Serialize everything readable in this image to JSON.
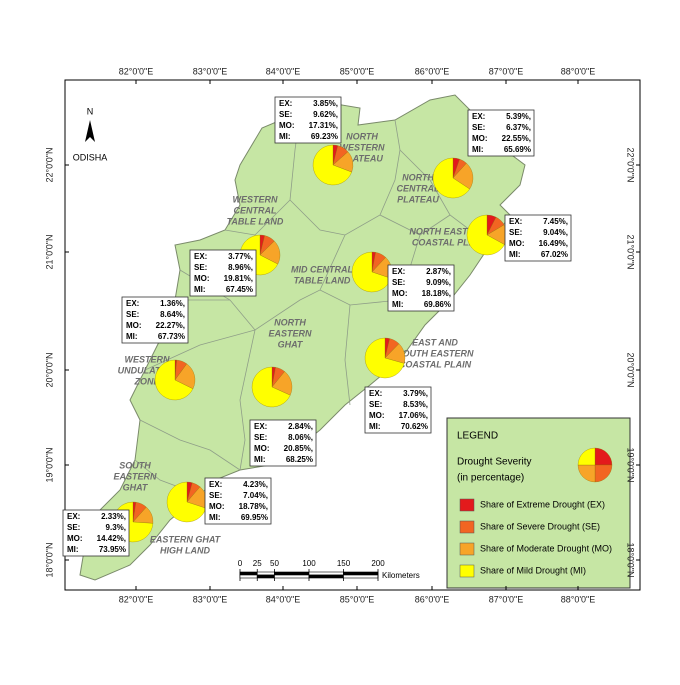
{
  "map_title": "ODISHA",
  "north_arrow": "N",
  "longitudes": [
    "82°0'0\"E",
    "83°0'0\"E",
    "84°0'0\"E",
    "85°0'0\"E",
    "86°0'0\"E",
    "87°0'0\"E",
    "88°0'0\"E"
  ],
  "latitudes": [
    "22°0'0\"N",
    "21°0'0\"N",
    "20°0'0\"N",
    "19°0'0\"N",
    "18°0'0\"N"
  ],
  "zones": [
    {
      "name_lines": [
        "NORTH",
        "WESTERN",
        "PLATEAU"
      ],
      "labels": [
        "EX:",
        "SE:",
        "MO:",
        "MI:"
      ],
      "values": [
        3.85,
        9.62,
        17.31,
        69.23
      ],
      "value_labels": [
        "3.85%,",
        "9.62%,",
        "17.31%,",
        "69.23%"
      ]
    },
    {
      "name_lines": [
        "NORTH",
        "CENTRAL",
        "PLATEAU"
      ],
      "labels": [
        "EX:",
        "SE:",
        "MO:",
        "MI:"
      ],
      "values": [
        5.39,
        6.37,
        22.55,
        65.69
      ],
      "value_labels": [
        "5.39%,",
        "6.37%,",
        "22.55%,",
        "65.69%"
      ]
    },
    {
      "name_lines": [
        "NORTH EASTERN",
        "COASTAL PLAIN"
      ],
      "labels": [
        "EX:",
        "SE:",
        "MO:",
        "MI:"
      ],
      "values": [
        7.45,
        9.04,
        16.49,
        67.02
      ],
      "value_labels": [
        "7.45%,",
        "9.04%,",
        "16.49%,",
        "67.02%"
      ]
    },
    {
      "name_lines": [
        "WESTERN",
        "CENTRAL",
        "TABLE LAND"
      ],
      "labels": [
        "EX:",
        "SE:",
        "MO:",
        "MI:"
      ],
      "values": [
        3.77,
        8.96,
        19.81,
        67.45
      ],
      "value_labels": [
        "3.77%,",
        "8.96%,",
        "19.81%,",
        "67.45%"
      ]
    },
    {
      "name_lines": [
        "MID CENTRAL",
        "TABLE LAND"
      ],
      "labels": [
        "EX:",
        "SE:",
        "MO:",
        "MI:"
      ],
      "values": [
        2.87,
        9.09,
        18.18,
        69.86
      ],
      "value_labels": [
        "2.87%,",
        "9.09%,",
        "18.18%,",
        "69.86%"
      ]
    },
    {
      "name_lines": [
        "WESTERN",
        "UNDULATING",
        "ZONE"
      ],
      "labels": [
        "EX:",
        "SE:",
        "MO:",
        "MI:"
      ],
      "values": [
        1.36,
        8.64,
        22.27,
        67.73
      ],
      "value_labels": [
        "1.36%,",
        "8.64%,",
        "22.27%,",
        "67.73%"
      ]
    },
    {
      "name_lines": [
        "NORTH",
        "EASTERN",
        "GHAT"
      ],
      "labels": [
        "EX:",
        "SE:",
        "MO:",
        "MI:"
      ],
      "values": [
        2.84,
        8.06,
        20.85,
        68.25
      ],
      "value_labels": [
        "2.84%,",
        "8.06%,",
        "20.85%,",
        "68.25%"
      ]
    },
    {
      "name_lines": [
        "EAST AND",
        "SOUTH EASTERN",
        "COASTAL PLAIN"
      ],
      "labels": [
        "EX:",
        "SE:",
        "MO:",
        "MI:"
      ],
      "values": [
        3.79,
        8.53,
        17.06,
        70.62
      ],
      "value_labels": [
        "3.79%,",
        "8.53%,",
        "17.06%,",
        "70.62%"
      ]
    },
    {
      "name_lines": [
        "SOUTH",
        "EASTERN",
        "GHAT"
      ],
      "labels": [
        "EX:",
        "SE:",
        "MO:",
        "MI:"
      ],
      "values": [
        2.33,
        9.3,
        14.42,
        73.95
      ],
      "value_labels": [
        "2.33%,",
        "9.3%,",
        "14.42%,",
        "73.95%"
      ]
    },
    {
      "name_lines": [
        "EASTERN GHAT",
        "HIGH LAND"
      ],
      "labels": [
        "EX:",
        "SE:",
        "MO:",
        "MI:"
      ],
      "values": [
        4.23,
        7.04,
        18.78,
        69.95
      ],
      "value_labels": [
        "4.23%,",
        "7.04%,",
        "18.78%,",
        "69.95%"
      ]
    }
  ],
  "legend": {
    "title": "LEGEND",
    "subtitle_lines": [
      "Drought Severity",
      "(in percentage)"
    ],
    "entries": [
      {
        "name": "Share of Extreme Drought (EX)",
        "color": "#e31a1c"
      },
      {
        "name": "Share of Severe Drought (SE)",
        "color": "#f26522"
      },
      {
        "name": "Share of Moderate Drought (MO)",
        "color": "#f7a428"
      },
      {
        "name": "Share of Mild Drought (MI)",
        "color": "#ffff00"
      }
    ]
  },
  "scale_bar": {
    "ticks": [
      0,
      25,
      50,
      100,
      150,
      200
    ],
    "unit": "Kilometers"
  }
}
